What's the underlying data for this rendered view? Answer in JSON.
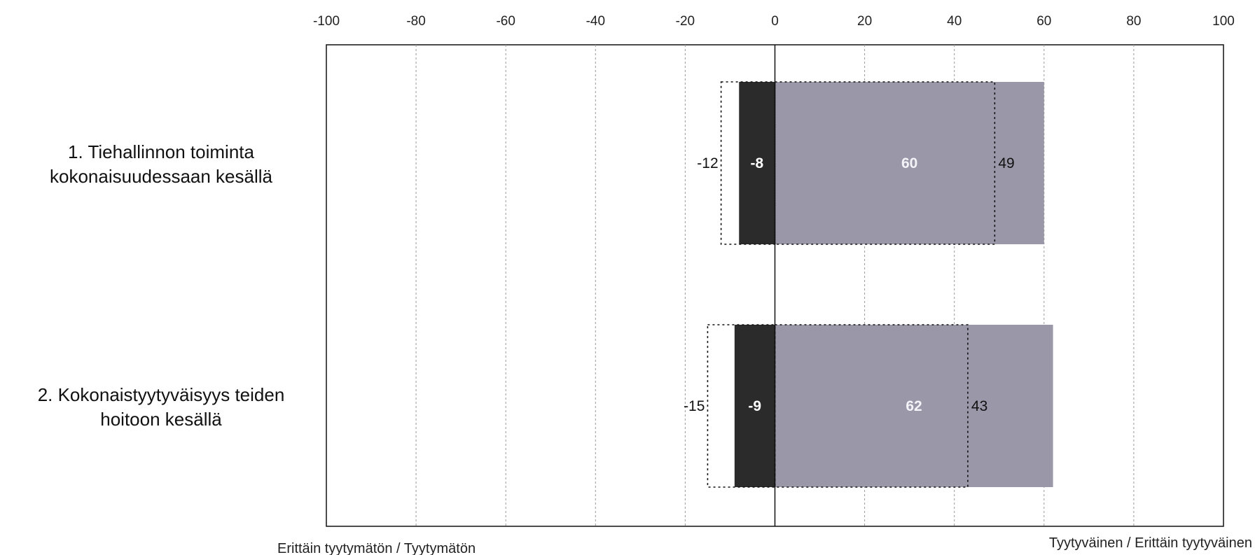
{
  "chart_data": {
    "type": "bar",
    "orientation": "horizontal-diverging",
    "xlim": [
      -100,
      100
    ],
    "xticks": [
      -100,
      -80,
      -60,
      -40,
      -20,
      0,
      20,
      40,
      60,
      80,
      100
    ],
    "xlabel_left": "Erittäin tyytymätön / Tyytymätön",
    "xlabel_right": "Tyytyväinen / Erittäin tyytyväinen",
    "grid": "vertical dashed",
    "categories": [
      [
        "1. Tiehallinnon toiminta",
        "kokonaisuudessaan kesällä"
      ],
      [
        "2. Kokonaistyytyväisyys teiden",
        "hoitoon kesällä"
      ]
    ],
    "series": [
      {
        "values": [
          -8,
          -9
        ],
        "color": "#2b2b2b",
        "style": "solid"
      },
      {
        "values": [
          60,
          62
        ],
        "color": "#9a97a8",
        "style": "solid"
      },
      {
        "values": [
          -12,
          -15
        ],
        "color": "none",
        "style": "dotted-outline"
      },
      {
        "values": [
          49,
          43
        ],
        "color": "none",
        "style": "dotted-outline"
      }
    ]
  }
}
